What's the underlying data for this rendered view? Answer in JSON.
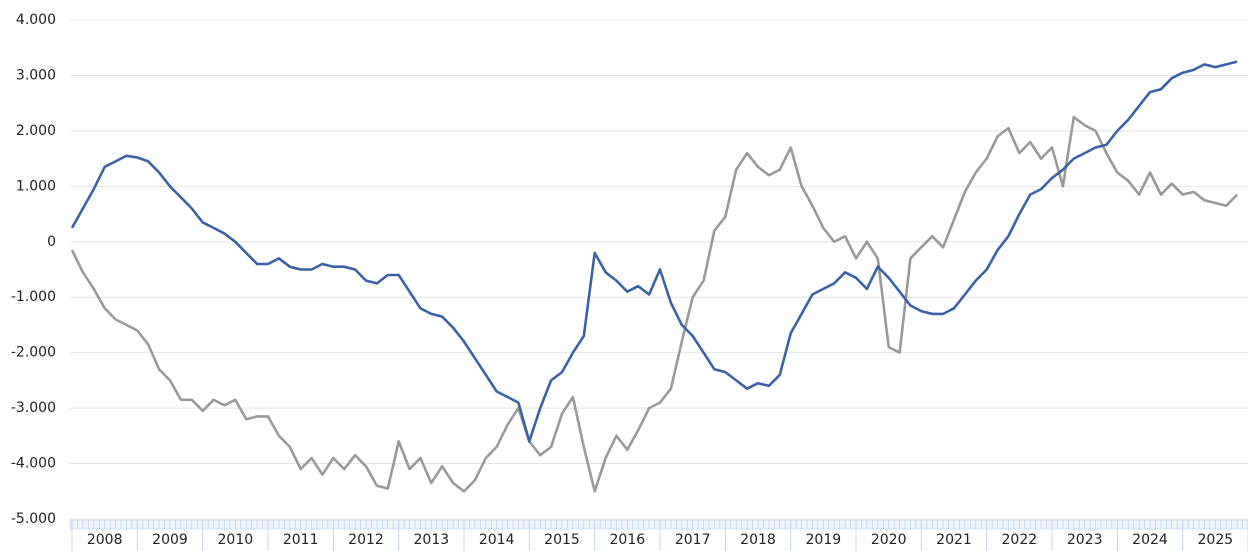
{
  "chart_data": {
    "type": "line",
    "categories": [
      null,
      null,
      null,
      "2008",
      null,
      null,
      null,
      null,
      null,
      "2009",
      null,
      null,
      null,
      null,
      null,
      "2010",
      null,
      null,
      null,
      null,
      null,
      "2011",
      null,
      null,
      null,
      null,
      null,
      "2012",
      null,
      null,
      null,
      null,
      null,
      "2013",
      null,
      null,
      null,
      null,
      null,
      "2014",
      null,
      null,
      null,
      null,
      null,
      "2015",
      null,
      null,
      null,
      null,
      null,
      "2016",
      null,
      null,
      null,
      null,
      null,
      "2017",
      null,
      null,
      null,
      null,
      null,
      "2018",
      null,
      null,
      null,
      null,
      null,
      "2019",
      null,
      null,
      null,
      null,
      null,
      "2020",
      null,
      null,
      null,
      null,
      null,
      "2021",
      null,
      null,
      null,
      null,
      null,
      "2022",
      null,
      null,
      null,
      null,
      null,
      "2023",
      null,
      null,
      null,
      null,
      null,
      "2024",
      null,
      null,
      null,
      null,
      null,
      "2025",
      null,
      null
    ],
    "series": [
      {
        "color": "#3a62a7",
        "values": [
          250,
          600,
          950,
          1350,
          1450,
          1550,
          1520,
          1450,
          1250,
          1000,
          800,
          600,
          350,
          250,
          150,
          0,
          -200,
          -400,
          -400,
          -300,
          -450,
          -500,
          -500,
          -400,
          -450,
          -450,
          -500,
          -700,
          -750,
          -600,
          -600,
          -900,
          -1200,
          -1300,
          -1350,
          -1550,
          -1800,
          -2100,
          -2400,
          -2700,
          -2800,
          -2900,
          -3600,
          -3000,
          -2500,
          -2350,
          -2000,
          -1700,
          -200,
          -550,
          -700,
          -900,
          -800,
          -950,
          -500,
          -1100,
          -1500,
          -1700,
          -2000,
          -2300,
          -2350,
          -2500,
          -2650,
          -2550,
          -2600,
          -2400,
          -1650,
          -1300,
          -950,
          -850,
          -750,
          -550,
          -650,
          -850,
          -450,
          -650,
          -900,
          -1150,
          -1250,
          -1300,
          -1300,
          -1200,
          -950,
          -700,
          -500,
          -150,
          100,
          500,
          850,
          950,
          1150,
          1300,
          1500,
          1600,
          1700,
          1750,
          2000,
          2200,
          2450,
          2700,
          2750,
          2950,
          3050,
          3100,
          3200,
          3150,
          3200,
          3250
        ]
      },
      {
        "color": "#9a9a9a",
        "values": [
          -150,
          -550,
          -850,
          -1200,
          -1400,
          -1500,
          -1600,
          -1850,
          -2300,
          -2500,
          -2850,
          -2850,
          -3050,
          -2850,
          -2950,
          -2850,
          -3200,
          -3150,
          -3150,
          -3500,
          -3700,
          -4100,
          -3900,
          -4200,
          -3900,
          -4100,
          -3850,
          -4050,
          -4400,
          -4450,
          -3600,
          -4100,
          -3900,
          -4350,
          -4050,
          -4350,
          -4500,
          -4300,
          -3900,
          -3700,
          -3300,
          -3000,
          -3600,
          -3850,
          -3700,
          -3100,
          -2800,
          -3700,
          -4500,
          -3900,
          -3500,
          -3750,
          -3400,
          -3000,
          -2900,
          -2650,
          -1800,
          -1000,
          -700,
          200,
          450,
          1300,
          1600,
          1350,
          1200,
          1300,
          1700,
          1000,
          650,
          250,
          0,
          100,
          -300,
          0,
          -300,
          -1900,
          -2000,
          -300,
          -100,
          100,
          -100,
          400,
          900,
          1250,
          1500,
          1900,
          2050,
          1600,
          1800,
          1500,
          1700,
          1000,
          2250,
          2100,
          2000,
          1600,
          1250,
          1100,
          850,
          1250,
          850,
          1050,
          850,
          900,
          750,
          700,
          650,
          850
        ]
      }
    ],
    "ylim": [
      -5000,
      4000
    ],
    "yticks": [
      {
        "value": -5000,
        "label": "-5.000"
      },
      {
        "value": -4000,
        "label": "-4.000"
      },
      {
        "value": -3000,
        "label": "-3.000"
      },
      {
        "value": -2000,
        "label": "-2.000"
      },
      {
        "value": -1000,
        "label": "-1.000"
      },
      0,
      {
        "value": 1000,
        "label": "1.000"
      },
      {
        "value": 2000,
        "label": "2.000"
      },
      {
        "value": 3000,
        "label": "3.000"
      },
      {
        "value": 4000,
        "label": "4.000"
      }
    ],
    "grid": true
  }
}
